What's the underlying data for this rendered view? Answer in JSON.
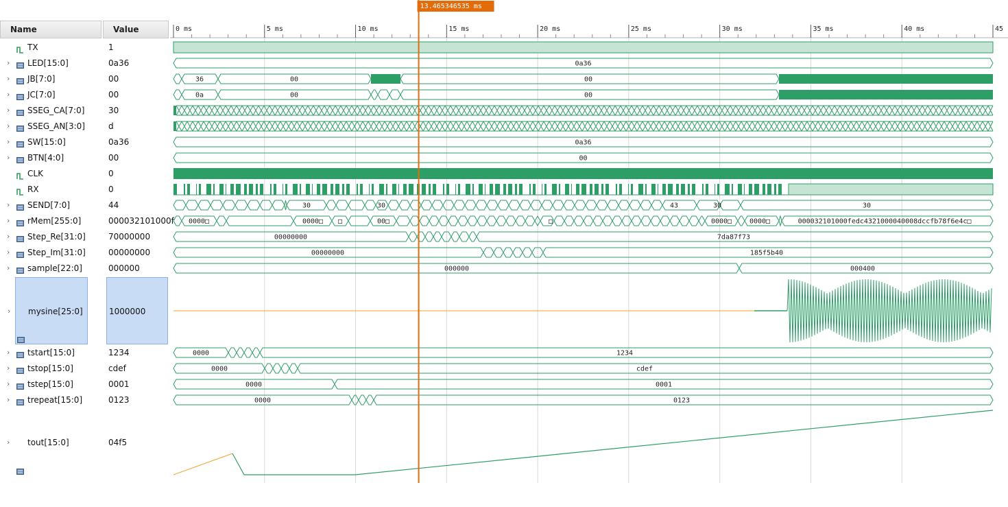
{
  "header": {
    "name_label": "Name",
    "value_label": "Value"
  },
  "cursor": {
    "time_ms": 13.465346535,
    "label": "13.465346535 ms"
  },
  "timeline": {
    "max_ms": 45,
    "ticks": [
      {
        "ms": 0,
        "label": "0 ms"
      },
      {
        "ms": 5,
        "label": "5 ms"
      },
      {
        "ms": 10,
        "label": "10 ms"
      },
      {
        "ms": 15,
        "label": "15 ms"
      },
      {
        "ms": 20,
        "label": "20 ms"
      },
      {
        "ms": 25,
        "label": "25 ms"
      },
      {
        "ms": 30,
        "label": "30 ms"
      },
      {
        "ms": 35,
        "label": "35 ms"
      },
      {
        "ms": 40,
        "label": "40 ms"
      },
      {
        "ms": 45,
        "label": "45"
      }
    ]
  },
  "colors": {
    "wave": "#2e9e67",
    "wave_fill": "#c5e4d4",
    "cursor": "#e36c0a",
    "orange": "#f0a020"
  },
  "signals": [
    {
      "name": "TX",
      "value": "1",
      "kind": "bit",
      "expand": false
    },
    {
      "name": "LED[15:0]",
      "value": "0a36",
      "kind": "bus",
      "expand": true
    },
    {
      "name": "JB[7:0]",
      "value": "00",
      "kind": "bus",
      "expand": true
    },
    {
      "name": "JC[7:0]",
      "value": "00",
      "kind": "bus",
      "expand": true
    },
    {
      "name": "SSEG_CA[7:0]",
      "value": "30",
      "kind": "bus",
      "expand": true
    },
    {
      "name": "SSEG_AN[3:0]",
      "value": "d",
      "kind": "bus",
      "expand": true
    },
    {
      "name": "SW[15:0]",
      "value": "0a36",
      "kind": "bus",
      "expand": true
    },
    {
      "name": "BTN[4:0]",
      "value": "00",
      "kind": "bus",
      "expand": true
    },
    {
      "name": "CLK",
      "value": "0",
      "kind": "bit",
      "expand": false
    },
    {
      "name": "RX",
      "value": "0",
      "kind": "bit",
      "expand": false
    },
    {
      "name": "SEND[7:0]",
      "value": "44",
      "kind": "bus",
      "expand": true
    },
    {
      "name": "rMem[255:0]",
      "value": "000032101000f",
      "kind": "bus",
      "expand": true
    },
    {
      "name": "Step_Re[31:0]",
      "value": "70000000",
      "kind": "bus",
      "expand": true
    },
    {
      "name": "Step_Im[31:0]",
      "value": "00000000",
      "kind": "bus",
      "expand": true
    },
    {
      "name": "sample[22:0]",
      "value": "000000",
      "kind": "bus",
      "expand": true
    },
    {
      "name": "mysine[25:0]",
      "value": "1000000",
      "kind": "analog",
      "expand": true,
      "selected": true
    },
    {
      "name": "tstart[15:0]",
      "value": "1234",
      "kind": "bus",
      "expand": true
    },
    {
      "name": "tstop[15:0]",
      "value": "cdef",
      "kind": "bus",
      "expand": true
    },
    {
      "name": "tstep[15:0]",
      "value": "0001",
      "kind": "bus",
      "expand": true
    },
    {
      "name": "trepeat[15:0]",
      "value": "0123",
      "kind": "bus",
      "expand": true
    },
    {
      "name": "tout[15:0]",
      "value": "04f5",
      "kind": "analog",
      "expand": true
    }
  ],
  "bus_labels": {
    "led": "0a36",
    "jb": [
      "36",
      "00",
      "00"
    ],
    "jc": [
      "0a",
      "00",
      "00"
    ],
    "sw": "0a36",
    "btn": "00",
    "send": [
      "30",
      "30",
      "43",
      "30",
      "30"
    ],
    "rmem": [
      "0000□",
      "0000□",
      "□",
      "00□",
      "□",
      "0000□",
      "0000□",
      "000032101000fedc4321000040008dccfb78f6e4c□"
    ],
    "step_re": [
      "00000000",
      "7da87f73"
    ],
    "step_im": [
      "00000000",
      "185f5b40"
    ],
    "sample": [
      "000000",
      "000400"
    ],
    "tstart": [
      "0000",
      "1234"
    ],
    "tstop": [
      "0000",
      "cdef"
    ],
    "tstep": [
      "0000",
      "0001"
    ],
    "trepeat": [
      "0000",
      "0123"
    ]
  }
}
